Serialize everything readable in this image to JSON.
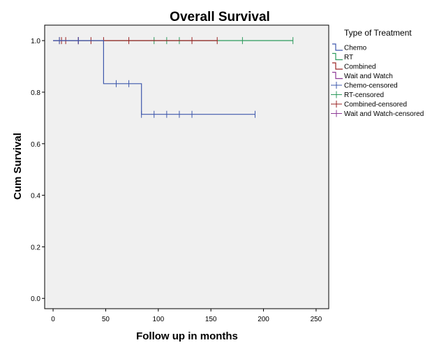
{
  "chart_data": {
    "type": "line",
    "title": "Overall Survival",
    "xlabel": "Follow up in months",
    "ylabel": "Cum Survival",
    "xlim": [
      -8,
      262
    ],
    "ylim": [
      -0.04,
      1.06
    ],
    "xticks": [
      0,
      50,
      100,
      150,
      200,
      250
    ],
    "yticks": [
      0.0,
      0.2,
      0.4,
      0.6,
      0.8,
      1.0
    ],
    "grid": false,
    "background": "#f0f0f0",
    "legend": {
      "title": "Type of Treatment",
      "position": "right",
      "entries": [
        {
          "label": "Chemo",
          "kind": "step",
          "color": "#3e58ac"
        },
        {
          "label": "RT",
          "kind": "step",
          "color": "#2c9a5c"
        },
        {
          "label": "Combined",
          "kind": "step",
          "color": "#9a2323"
        },
        {
          "label": "Wait and Watch",
          "kind": "step",
          "color": "#8d3a96"
        },
        {
          "label": "Chemo-censored",
          "kind": "censor",
          "color": "#3e58ac"
        },
        {
          "label": "RT-censored",
          "kind": "censor",
          "color": "#2c9a5c"
        },
        {
          "label": "Combined-censored",
          "kind": "censor",
          "color": "#9a2323"
        },
        {
          "label": "Wait and Watch-censored",
          "kind": "censor",
          "color": "#8d3a96"
        }
      ]
    },
    "series": [
      {
        "name": "Chemo",
        "color": "#3e58ac",
        "steps": [
          [
            0,
            1.0
          ],
          [
            48,
            1.0
          ],
          [
            48,
            0.833
          ],
          [
            84,
            0.833
          ],
          [
            84,
            0.714
          ],
          [
            192,
            0.714
          ]
        ],
        "censored": [
          [
            6,
            1.0
          ],
          [
            24,
            1.0
          ],
          [
            60,
            0.833
          ],
          [
            72,
            0.833
          ],
          [
            84,
            0.714
          ],
          [
            96,
            0.714
          ],
          [
            108,
            0.714
          ],
          [
            120,
            0.714
          ],
          [
            132,
            0.714
          ],
          [
            192,
            0.714
          ]
        ]
      },
      {
        "name": "RT",
        "color": "#2c9a5c",
        "steps": [
          [
            0,
            1.0
          ],
          [
            228,
            1.0
          ]
        ],
        "censored": [
          [
            96,
            1.0
          ],
          [
            108,
            1.0
          ],
          [
            120,
            1.0
          ],
          [
            180,
            1.0
          ],
          [
            228,
            1.0
          ]
        ]
      },
      {
        "name": "Combined",
        "color": "#9a2323",
        "steps": [
          [
            0,
            1.0
          ],
          [
            156,
            1.0
          ]
        ],
        "censored": [
          [
            6,
            1.0
          ],
          [
            8,
            1.0
          ],
          [
            12,
            1.0
          ],
          [
            24,
            1.0
          ],
          [
            24,
            1.0
          ],
          [
            36,
            1.0
          ],
          [
            48,
            1.0
          ],
          [
            72,
            1.0
          ],
          [
            132,
            1.0
          ],
          [
            156,
            1.0
          ]
        ]
      },
      {
        "name": "Wait and Watch",
        "color": "#8d3a96",
        "steps": [
          [
            0,
            1.0
          ],
          [
            24,
            1.0
          ]
        ],
        "censored": [
          [
            24,
            1.0
          ]
        ]
      }
    ]
  }
}
